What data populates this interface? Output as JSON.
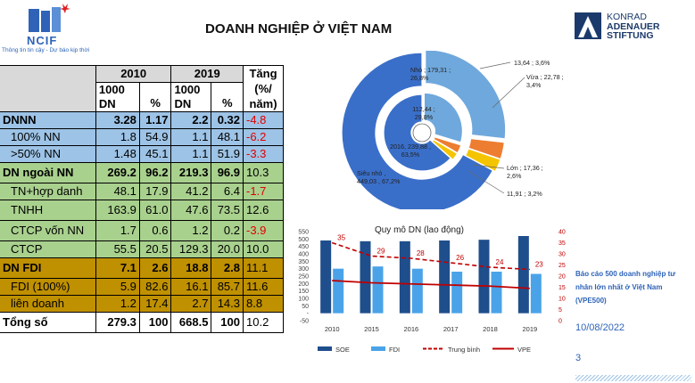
{
  "header": {
    "logo_name": "NCIF",
    "logo_tagline": "Thông tin tin cậy - Dự báo kịp thời",
    "title": "DOANH NGHIỆP Ở VIỆT NAM",
    "partner_line1": "KONRAD",
    "partner_line2": "ADENAUER",
    "partner_line3": "STIFTUNG"
  },
  "table": {
    "head": {
      "y2010": "2010",
      "y2019": "2019",
      "growth": "Tăng (%/ năm)",
      "unit_dn": "1000 DN",
      "unit_pct": "%"
    },
    "rows": [
      {
        "label": "DNNN",
        "a": "3.28",
        "b": "1.17",
        "c": "2.2",
        "d": "0.32",
        "g": "-4.8",
        "group": "blue",
        "bold": true,
        "neg": true
      },
      {
        "label": "100% NN",
        "a": "1.8",
        "b": "54.9",
        "c": "1.1",
        "d": "48.1",
        "g": "-6.2",
        "group": "blue",
        "bold": false,
        "neg": true
      },
      {
        "label": ">50% NN",
        "a": "1.48",
        "b": "45.1",
        "c": "1.1",
        "d": "51.9",
        "g": "-3.3",
        "group": "blue",
        "bold": false,
        "neg": true
      },
      {
        "label": "DN ngoài NN",
        "a": "269.2",
        "b": "96.2",
        "c": "219.3",
        "d": "96.9",
        "g": "10.3",
        "group": "green",
        "bold": true,
        "neg": false
      },
      {
        "label": "TN+hợp danh",
        "a": "48.1",
        "b": "17.9",
        "c": "41.2",
        "d": "6.4",
        "g": "-1.7",
        "group": "green",
        "bold": false,
        "neg": true
      },
      {
        "label": "TNHH",
        "a": "163.9",
        "b": "61.0",
        "c": "47.6",
        "d": "73.5",
        "g": "12.6",
        "group": "green",
        "bold": false,
        "neg": false
      },
      {
        "label": "CTCP vốn NN",
        "a": "1.7",
        "b": "0.6",
        "c": "1.2",
        "d": "0.2",
        "g": "-3.9",
        "group": "green",
        "bold": false,
        "neg": true
      },
      {
        "label": "CTCP",
        "a": "55.5",
        "b": "20.5",
        "c": "129.3",
        "d": "20.0",
        "g": "10.0",
        "group": "green",
        "bold": false,
        "neg": false
      },
      {
        "label": "DN FDI",
        "a": "7.1",
        "b": "2.6",
        "c": "18.8",
        "d": "2.8",
        "g": "11.1",
        "group": "gold",
        "bold": true,
        "neg": false
      },
      {
        "label": "FDI (100%)",
        "a": "5.9",
        "b": "82.6",
        "c": "16.1",
        "d": "85.7",
        "g": "11.6",
        "group": "gold",
        "bold": false,
        "neg": false
      },
      {
        "label": "liên doanh",
        "a": "1.2",
        "b": "17.4",
        "c": "2.7",
        "d": "14.3",
        "g": "8.8",
        "group": "gold",
        "bold": false,
        "neg": false
      },
      {
        "label": "Tổng số",
        "a": "279.3",
        "b": "100",
        "c": "668.5",
        "d": "100",
        "g": "10.2",
        "group": "white",
        "bold": true,
        "neg": false
      }
    ]
  },
  "chart_data": [
    {
      "type": "pie",
      "title": "",
      "rings": [
        {
          "name": "2010",
          "slices": [
            {
              "label": "Siêu nhỏ , 449,03 , 67,2%",
              "value": 67.2
            },
            {
              "label": "Nhỏ ; 179,31 ; 26,8%",
              "value": 26.8
            },
            {
              "label": "Vừa ; 22,78 ; 3,4%",
              "value": 3.4
            },
            {
              "label": "Lớn ; 17,36 ; 2,6%",
              "value": 2.6
            }
          ]
        },
        {
          "name": "2016",
          "slices": [
            {
              "label": "2016, 239,88 , 63,5%",
              "value": 63.5
            },
            {
              "label": "112,44 ; 29,8%",
              "value": 29.8
            },
            {
              "label": "13,64 ; 3,6%",
              "value": 3.6
            },
            {
              "label": "11,91 ; 3,2%",
              "value": 3.2
            }
          ]
        }
      ],
      "colors": [
        "#3a6fc9",
        "#6fa8dc",
        "#ed7d31",
        "#f5c400"
      ]
    },
    {
      "type": "bar",
      "title": "Quy mô DN (lao động)",
      "categories": [
        "2010",
        "2015",
        "2016",
        "2017",
        "2018",
        "2019"
      ],
      "ylim": [
        -50,
        550
      ],
      "yticks": [
        "550",
        "500",
        "450",
        "400",
        "350",
        "300",
        "250",
        "200",
        "150",
        "100",
        "50",
        "-",
        "-50"
      ],
      "y2lim": [
        0,
        40
      ],
      "y2ticks": [
        "40",
        "35",
        "30",
        "25",
        "20",
        "15",
        "10",
        "5",
        "0"
      ],
      "series": [
        {
          "name": "SOE",
          "axis": "left",
          "kind": "bar",
          "color": "#1f4e8c",
          "values": [
            490,
            485,
            485,
            490,
            495,
            520
          ]
        },
        {
          "name": "FDI",
          "axis": "left",
          "kind": "bar",
          "color": "#4aa3e8",
          "values": [
            300,
            315,
            300,
            280,
            280,
            265
          ]
        },
        {
          "name": "Trung bình",
          "axis": "right",
          "kind": "dashed-line",
          "color": "#c00000",
          "values": [
            35,
            29,
            28,
            26,
            24,
            23
          ],
          "labels": [
            "35",
            "29",
            "28",
            "26",
            "24",
            "23"
          ]
        },
        {
          "name": "VPE",
          "axis": "right",
          "kind": "line",
          "color": "#c00000",
          "values": [
            18,
            17,
            16.5,
            16,
            15.5,
            14.5
          ]
        }
      ]
    }
  ],
  "notes": {
    "report_title": "Báo cáo 500 doanh nghiệp tư nhân lớn nhất ở Việt Nam (VPE500)",
    "date": "10/08/2022",
    "page": "3"
  },
  "colors": {
    "accent": "#2e63b8",
    "red": "#c00000"
  }
}
